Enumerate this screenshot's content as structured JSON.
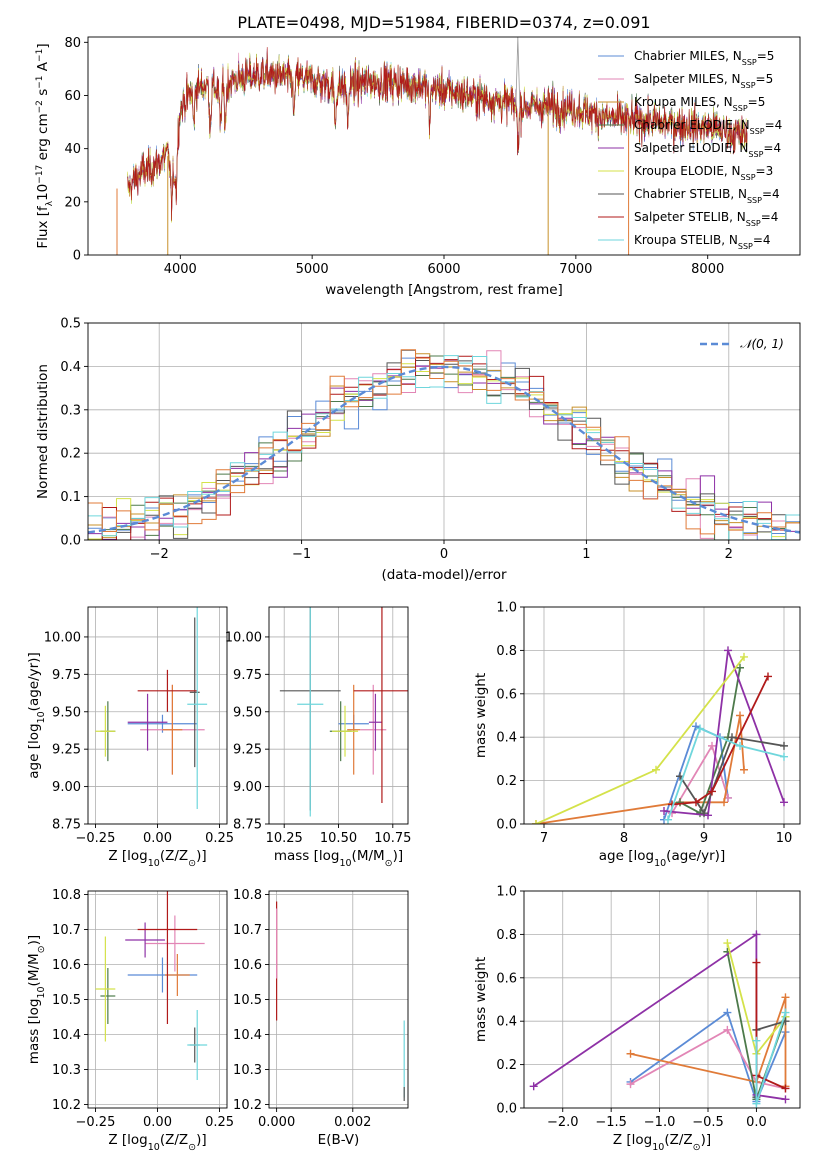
{
  "chart_data": [
    {
      "id": "spectrum",
      "type": "line",
      "title": "PLATE=0498, MJD=51984, FIBERID=0374, z=0.091",
      "xlabel": "wavelength [Angstrom, rest frame]",
      "ylabel": "Flux [f_λ 10^-17 erg cm^-2 s^-1 A^-1]",
      "ylabel_parts": {
        "a": "Flux [f",
        "b": "λ",
        "c": "10",
        "d": "−17",
        "e": " erg cm",
        "f": "−2",
        "g": " s",
        "h": "−1",
        "i": " A",
        "j": "−1",
        "k": "]"
      },
      "xlim": [
        3300,
        8700
      ],
      "ylim": [
        0,
        82
      ],
      "xticks": [
        "4000",
        "5000",
        "6000",
        "7000",
        "8000"
      ],
      "yticks": [
        "0",
        "20",
        "40",
        "60",
        "80"
      ],
      "legend": "top-right",
      "series": [
        {
          "name": "Chabrier MILES, N_SSP=5",
          "lbl": "Chabrier MILES, N",
          "sub": "SSP",
          "tail": "=5",
          "color": "#5b8bd6"
        },
        {
          "name": "Salpeter MILES, N_SSP=5",
          "lbl": "Salpeter MILES, N",
          "sub": "SSP",
          "tail": "=5",
          "color": "#e286b6"
        },
        {
          "name": "Kroupa MILES, N_SSP=5",
          "lbl": "Kroupa MILES, N",
          "sub": "SSP",
          "tail": "=5",
          "color": "#c8902a"
        },
        {
          "name": "Chabrier ELODIE, N_SSP=4",
          "lbl": "Chabrier ELODIE, N",
          "sub": "SSP",
          "tail": "=4",
          "color": "#4d7a4b"
        },
        {
          "name": "Salpeter ELODIE, N_SSP=4",
          "lbl": "Salpeter ELODIE, N",
          "sub": "SSP",
          "tail": "=4",
          "color": "#8e31a6"
        },
        {
          "name": "Kroupa ELODIE, N_SSP=3",
          "lbl": "Kroupa ELODIE, N",
          "sub": "SSP",
          "tail": "=3",
          "color": "#d4e24a"
        },
        {
          "name": "Chabrier STELIB, N_SSP=4",
          "lbl": "Chabrier STELIB, N",
          "sub": "SSP",
          "tail": "=4",
          "color": "#555555"
        },
        {
          "name": "Salpeter STELIB, N_SSP=4",
          "lbl": "Salpeter STELIB, N",
          "sub": "SSP",
          "tail": "=4",
          "color": "#b01a1a"
        },
        {
          "name": "Kroupa STELIB, N_SSP=4",
          "lbl": "Kroupa STELIB, N",
          "sub": "SSP",
          "tail": "=4",
          "color": "#6fd6dc"
        }
      ],
      "continuum": [
        [
          3600,
          25
        ],
        [
          3700,
          31
        ],
        [
          3800,
          33
        ],
        [
          3900,
          38
        ],
        [
          3950,
          30
        ],
        [
          4000,
          55
        ],
        [
          4100,
          63
        ],
        [
          4200,
          64
        ],
        [
          4300,
          62
        ],
        [
          4400,
          66
        ],
        [
          4600,
          68
        ],
        [
          4800,
          67
        ],
        [
          5000,
          66
        ],
        [
          5200,
          63
        ],
        [
          5400,
          65
        ],
        [
          5600,
          65
        ],
        [
          5800,
          64
        ],
        [
          6000,
          62
        ],
        [
          6200,
          60
        ],
        [
          6400,
          58
        ],
        [
          6600,
          56
        ],
        [
          6800,
          56
        ],
        [
          7000,
          55
        ],
        [
          7200,
          52
        ],
        [
          7400,
          51
        ],
        [
          7600,
          50
        ],
        [
          7800,
          49
        ],
        [
          8000,
          48
        ],
        [
          8200,
          46
        ],
        [
          8300,
          44
        ]
      ],
      "absorption_lines": [
        3934,
        3969,
        4102,
        4227,
        4304,
        4341,
        4861,
        5175,
        5270,
        5890,
        6563
      ],
      "dropouts": [
        [
          3520,
          "#e07b39"
        ],
        [
          3905,
          "#c8902a"
        ],
        [
          6790,
          "#c8902a"
        ],
        [
          7400,
          "#e07b39"
        ]
      ],
      "spike": [
        6560,
        82
      ]
    },
    {
      "id": "residuals",
      "type": "histogram",
      "xlabel": "(data-model)/error",
      "ylabel": "Normed distribution",
      "xlim": [
        -2.5,
        2.5
      ],
      "ylim": [
        0,
        0.5
      ],
      "xticks": [
        "−2",
        "−1",
        "0",
        "1",
        "2"
      ],
      "yticks": [
        "0.0",
        "0.1",
        "0.2",
        "0.3",
        "0.4",
        "0.5"
      ],
      "bin_width": 0.1,
      "reference": {
        "label": "𝒩(0, 1)",
        "mean": 0,
        "sigma": 1,
        "color": "#5b8bd6"
      },
      "legend": "top-right"
    },
    {
      "id": "age_vs_Z",
      "type": "scatter",
      "xlabel": "Z [log10(Z/Z⊙)]",
      "ylabel": "age  [log10(age/yr)]",
      "xlim": [
        -0.28,
        0.28
      ],
      "ylim": [
        8.75,
        10.2
      ],
      "xticks": [
        "−0.25",
        "0.00",
        "0.25"
      ],
      "yticks": [
        "8.75",
        "9.00",
        "9.25",
        "9.50",
        "9.75",
        "10.00"
      ],
      "points": [
        {
          "x": 0.02,
          "y": 9.42,
          "xerr": 0.14,
          "yerr": 0.06,
          "color": "#5b8bd6"
        },
        {
          "x": 0.06,
          "y": 9.38,
          "xerr": 0.13,
          "yerr": 0.3,
          "color": "#e286b6"
        },
        {
          "x": 0.06,
          "y": 9.38,
          "xerr": 0.04,
          "yerr": 0.3,
          "color": "#e07b39"
        },
        {
          "x": -0.2,
          "y": 9.37,
          "xerr": 0.03,
          "yerr": 0.2,
          "color": "#4d7a4b"
        },
        {
          "x": -0.04,
          "y": 9.43,
          "xerr": 0.08,
          "yerr": 0.19,
          "color": "#8e31a6"
        },
        {
          "x": -0.21,
          "y": 9.37,
          "xerr": 0.04,
          "yerr": 0.17,
          "color": "#d4e24a"
        },
        {
          "x": 0.15,
          "y": 9.63,
          "xerr": 0.02,
          "yerr": 0.5,
          "color": "#555555"
        },
        {
          "x": 0.04,
          "y": 9.64,
          "xerr": 0.12,
          "yerr": 0.14,
          "color": "#b01a1a"
        },
        {
          "x": 0.16,
          "y": 9.55,
          "xerr": 0.04,
          "yerr": 0.7,
          "color": "#6fd6dc"
        }
      ]
    },
    {
      "id": "age_vs_mass",
      "type": "scatter",
      "xlabel": "mass [log10(M/M⊙)]",
      "xlim": [
        10.18,
        10.82
      ],
      "ylim": [
        8.75,
        10.2
      ],
      "xticks": [
        "10.25",
        "10.50",
        "10.75"
      ],
      "yticks": [
        "8.75",
        "9.00",
        "9.25",
        "9.50",
        "9.75",
        "10.00"
      ],
      "points": [
        {
          "x": 10.57,
          "y": 9.42,
          "xerr": 0.07,
          "yerr": 0.06,
          "color": "#5b8bd6"
        },
        {
          "x": 10.66,
          "y": 9.38,
          "xerr": 0.06,
          "yerr": 0.3,
          "color": "#e286b6"
        },
        {
          "x": 10.57,
          "y": 9.38,
          "xerr": 0.03,
          "yerr": 0.3,
          "color": "#e07b39"
        },
        {
          "x": 10.51,
          "y": 9.37,
          "xerr": 0.05,
          "yerr": 0.2,
          "color": "#4d7a4b"
        },
        {
          "x": 10.67,
          "y": 9.43,
          "xerr": 0.03,
          "yerr": 0.19,
          "color": "#8e31a6"
        },
        {
          "x": 10.53,
          "y": 9.37,
          "xerr": 0.06,
          "yerr": 0.17,
          "color": "#d4e24a"
        },
        {
          "x": 10.37,
          "y": 9.64,
          "xerr": 0.14,
          "yerr": 0.8,
          "color": "#555555"
        },
        {
          "x": 10.7,
          "y": 9.64,
          "xerr": 0.13,
          "yerr": 0.75,
          "color": "#b01a1a"
        },
        {
          "x": 10.37,
          "y": 9.55,
          "xerr": 0.06,
          "yerr": 0.75,
          "color": "#6fd6dc"
        }
      ]
    },
    {
      "id": "weight_vs_age",
      "type": "line",
      "xlabel": "age  [log10(age/yr)]",
      "ylabel": "mass weight",
      "xlim": [
        6.75,
        10.2
      ],
      "ylim": [
        0,
        1.0
      ],
      "xticks": [
        "7",
        "8",
        "9",
        "10"
      ],
      "yticks": [
        "0.0",
        "0.2",
        "0.4",
        "0.6",
        "0.8",
        "1.0"
      ],
      "series": [
        {
          "color": "#5b8bd6",
          "x": [
            8.5,
            8.9,
            9.2,
            9.3
          ],
          "y": [
            0.02,
            0.45,
            0.4,
            0.12
          ]
        },
        {
          "color": "#e286b6",
          "x": [
            8.6,
            9.1,
            9.3
          ],
          "y": [
            0.05,
            0.36,
            0.12
          ]
        },
        {
          "color": "#e07b39",
          "x": [
            6.9,
            8.7,
            9.25,
            9.45,
            9.5
          ],
          "y": [
            0.0,
            0.1,
            0.1,
            0.5,
            0.25
          ]
        },
        {
          "color": "#4d7a4b",
          "x": [
            8.7,
            8.95,
            9.3,
            9.45
          ],
          "y": [
            0.1,
            0.05,
            0.4,
            0.72
          ]
        },
        {
          "color": "#8e31a6",
          "x": [
            8.5,
            9.05,
            9.3,
            10.0
          ],
          "y": [
            0.06,
            0.04,
            0.8,
            0.1
          ]
        },
        {
          "color": "#d4e24a",
          "x": [
            6.9,
            8.4,
            9.5
          ],
          "y": [
            0.0,
            0.25,
            0.77
          ]
        },
        {
          "color": "#555555",
          "x": [
            8.7,
            9.0,
            9.35,
            10.0
          ],
          "y": [
            0.22,
            0.05,
            0.4,
            0.36
          ]
        },
        {
          "color": "#b01a1a",
          "x": [
            8.6,
            8.9,
            9.1,
            9.8
          ],
          "y": [
            0.09,
            0.1,
            0.15,
            0.68
          ]
        },
        {
          "color": "#6fd6dc",
          "x": [
            8.55,
            8.95,
            9.45,
            10.0
          ],
          "y": [
            0.02,
            0.44,
            0.36,
            0.31
          ]
        }
      ]
    },
    {
      "id": "mass_vs_Z",
      "type": "scatter",
      "xlabel": "Z [log10(Z/Z⊙)]",
      "ylabel": "mass [log10(M/M⊙)]",
      "xlim": [
        -0.28,
        0.28
      ],
      "ylim": [
        10.19,
        10.81
      ],
      "xticks": [
        "−0.25",
        "0.00",
        "0.25"
      ],
      "yticks": [
        "10.2",
        "10.3",
        "10.4",
        "10.5",
        "10.6",
        "10.7",
        "10.8"
      ],
      "points": [
        {
          "x": 0.02,
          "y": 10.57,
          "xerr": 0.14,
          "yerr": 0.05,
          "color": "#5b8bd6"
        },
        {
          "x": 0.07,
          "y": 10.66,
          "xerr": 0.12,
          "yerr": 0.08,
          "color": "#e286b6"
        },
        {
          "x": 0.08,
          "y": 10.57,
          "xerr": 0.05,
          "yerr": 0.06,
          "color": "#e07b39"
        },
        {
          "x": -0.2,
          "y": 10.51,
          "xerr": 0.03,
          "yerr": 0.08,
          "color": "#4d7a4b"
        },
        {
          "x": -0.05,
          "y": 10.67,
          "xerr": 0.08,
          "yerr": 0.05,
          "color": "#8e31a6"
        },
        {
          "x": -0.21,
          "y": 10.53,
          "xerr": 0.04,
          "yerr": 0.15,
          "color": "#d4e24a"
        },
        {
          "x": 0.15,
          "y": 10.37,
          "xerr": 0.02,
          "yerr": 0.05,
          "color": "#555555"
        },
        {
          "x": 0.04,
          "y": 10.7,
          "xerr": 0.12,
          "yerr": 0.27,
          "color": "#b01a1a"
        },
        {
          "x": 0.16,
          "y": 10.37,
          "xerr": 0.04,
          "yerr": 0.1,
          "color": "#6fd6dc"
        }
      ]
    },
    {
      "id": "mass_vs_ebv",
      "type": "scatter",
      "xlabel": "E(B-V)",
      "xlim": [
        -0.0002,
        0.00345
      ],
      "ylim": [
        10.19,
        10.81
      ],
      "xticks": [
        "0.000",
        "0.002"
      ],
      "yticks": [
        "10.2",
        "10.3",
        "10.4",
        "10.5",
        "10.6",
        "10.7",
        "10.8"
      ],
      "points": [
        {
          "x": 0.0,
          "y": 10.61,
          "xerr": 0,
          "yerr": 0.17,
          "color": "#b01a1a"
        },
        {
          "x": 0.0,
          "y": 10.66,
          "xerr": 0,
          "yerr": 0.1,
          "color": "#e286b6"
        },
        {
          "x": 0.00335,
          "y": 10.33,
          "xerr": 0,
          "yerr": 0.11,
          "color": "#6fd6dc"
        },
        {
          "x": 0.00335,
          "y": 10.23,
          "xerr": 0,
          "yerr": 0.02,
          "color": "#555555"
        }
      ]
    },
    {
      "id": "weight_vs_Z",
      "type": "line",
      "xlabel": "Z [log10(Z/Z⊙)]",
      "ylabel": "mass weight",
      "xlim": [
        -2.4,
        0.45
      ],
      "ylim": [
        0,
        1.0
      ],
      "xticks": [
        "−2.0",
        "−1.5",
        "−1.0",
        "−0.5",
        "0.0"
      ],
      "yticks": [
        "0.0",
        "0.2",
        "0.4",
        "0.6",
        "0.8",
        "1.0"
      ],
      "series": [
        {
          "color": "#5b8bd6",
          "x": [
            -1.3,
            -0.3,
            0.0,
            0.3
          ],
          "y": [
            0.12,
            0.44,
            0.03,
            0.35
          ]
        },
        {
          "color": "#e286b6",
          "x": [
            -1.3,
            -0.3,
            0.0,
            0.3
          ],
          "y": [
            0.11,
            0.36,
            0.12,
            0.09
          ]
        },
        {
          "color": "#e07b39",
          "x": [
            -1.3,
            0.0,
            0.3,
            0.3
          ],
          "y": [
            0.25,
            0.12,
            0.51,
            0.1
          ]
        },
        {
          "color": "#4d7a4b",
          "x": [
            -0.3,
            0.0,
            0.3
          ],
          "y": [
            0.72,
            0.04,
            0.42
          ]
        },
        {
          "color": "#8e31a6",
          "x": [
            -2.3,
            0.0,
            0.0,
            0.3
          ],
          "y": [
            0.1,
            0.8,
            0.06,
            0.04
          ]
        },
        {
          "color": "#d4e24a",
          "x": [
            -0.3,
            0.0,
            0.3
          ],
          "y": [
            0.76,
            0.25,
            0.42
          ]
        },
        {
          "color": "#555555",
          "x": [
            0.0,
            0.0,
            0.3
          ],
          "y": [
            0.05,
            0.36,
            0.4
          ]
        },
        {
          "color": "#b01a1a",
          "x": [
            0.0,
            0.0,
            0.3
          ],
          "y": [
            0.67,
            0.15,
            0.09
          ]
        },
        {
          "color": "#6fd6dc",
          "x": [
            0.0,
            0.0,
            0.3
          ],
          "y": [
            0.31,
            0.02,
            0.44
          ]
        }
      ]
    }
  ]
}
